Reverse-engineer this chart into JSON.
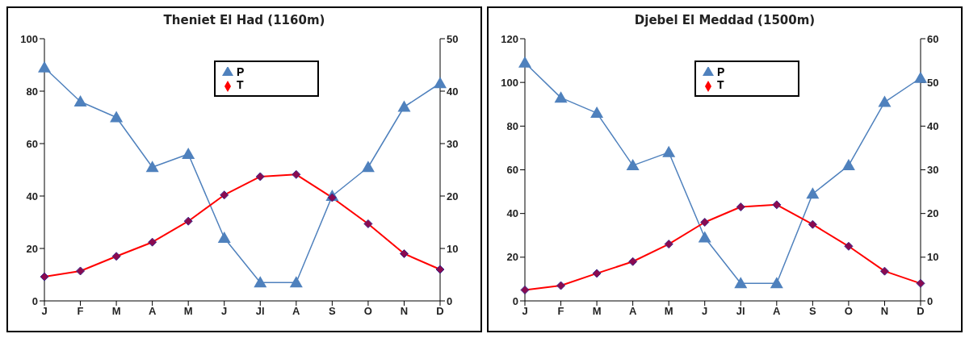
{
  "chart_data": [
    {
      "type": "line",
      "title": "Theniet El Had (1160m)",
      "categories": [
        "J",
        "F",
        "M",
        "A",
        "M",
        "J",
        "Jl",
        "A",
        "S",
        "O",
        "N",
        "D"
      ],
      "series": [
        {
          "name": "P",
          "color": "#4f81bd",
          "marker": "triangle",
          "values": [
            89,
            76,
            70,
            51,
            56,
            24,
            7,
            7,
            40,
            51,
            74,
            83
          ]
        },
        {
          "name": "T",
          "color": "#ff0000",
          "marker": "diamond",
          "axis": "y2",
          "values": [
            4.6,
            5.7,
            8.5,
            11.2,
            15.2,
            20.2,
            23.7,
            24.1,
            19.7,
            14.7,
            9,
            6
          ]
        }
      ],
      "ylim": [
        0,
        100
      ],
      "yticks": [
        0,
        20,
        40,
        60,
        80,
        100
      ],
      "y2lim": [
        0,
        50
      ],
      "y2ticks": [
        0,
        10,
        20,
        30,
        40,
        50
      ],
      "grid": false,
      "legend": "top"
    },
    {
      "type": "line",
      "title": "Djebel El Meddad (1500m)",
      "categories": [
        "J",
        "F",
        "M",
        "A",
        "M",
        "J",
        "Jl",
        "A",
        "S",
        "O",
        "N",
        "D"
      ],
      "series": [
        {
          "name": "P",
          "color": "#4f81bd",
          "marker": "triangle",
          "values": [
            109,
            93,
            86,
            62,
            68,
            29,
            8,
            8,
            49,
            62,
            91,
            102
          ]
        },
        {
          "name": "T",
          "color": "#ff0000",
          "marker": "diamond",
          "axis": "y2",
          "values": [
            2.5,
            3.5,
            6.3,
            9,
            13,
            18,
            21.5,
            22,
            17.5,
            12.5,
            6.8,
            4
          ]
        }
      ],
      "ylim": [
        0,
        120
      ],
      "yticks": [
        0,
        20,
        40,
        60,
        80,
        100,
        120
      ],
      "y2lim": [
        0,
        60
      ],
      "y2ticks": [
        0,
        10,
        20,
        30,
        40,
        50,
        60
      ],
      "grid": false,
      "legend": "top"
    }
  ]
}
